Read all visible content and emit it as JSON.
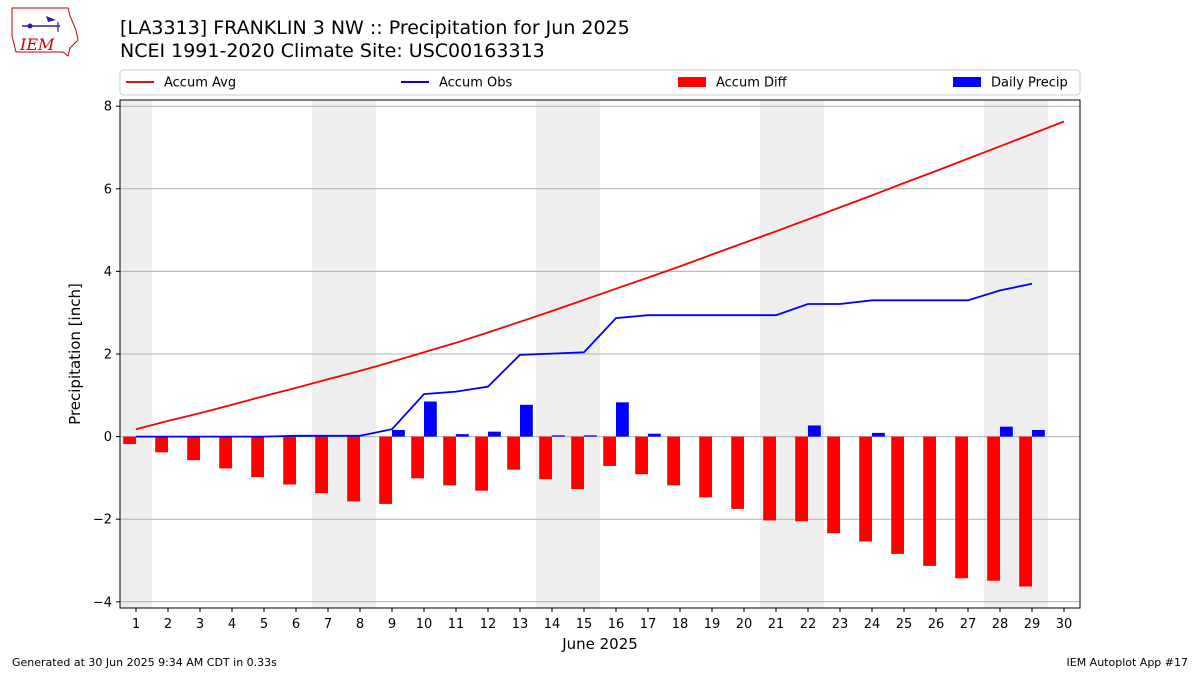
{
  "title_line1": "[LA3313] FRANKLIN 3 NW :: Precipitation for Jun 2025",
  "title_line2": "NCEI 1991-2020 Climate Site: USC00163313",
  "logo_text": "IEM",
  "footer_left": "Generated at 30 Jun 2025 9:34 AM CDT in 0.33s",
  "footer_right": "IEM Autoplot App #17",
  "colors": {
    "avg": "#ff0000",
    "obs": "#0000ff",
    "diff": "#ff0000",
    "daily": "#0000ff",
    "weekend": "#eeeeee",
    "grid": "#b0b0b0"
  },
  "chart_data": {
    "type": "bar",
    "xlabel": "June 2025",
    "ylabel": "Precipitation [inch]",
    "ylim": [
      -4.15,
      8.15
    ],
    "xlim": [
      0.5,
      30.5
    ],
    "yticks": [
      -4,
      -2,
      0,
      2,
      4,
      6,
      8
    ],
    "ytick_labels": [
      "−4",
      "−2",
      "0",
      "2",
      "4",
      "6",
      "8"
    ],
    "x": [
      1,
      2,
      3,
      4,
      5,
      6,
      7,
      8,
      9,
      10,
      11,
      12,
      13,
      14,
      15,
      16,
      17,
      18,
      19,
      20,
      21,
      22,
      23,
      24,
      25,
      26,
      27,
      28,
      29,
      30
    ],
    "x_tick_labels": [
      "1",
      "2",
      "3",
      "4",
      "5",
      "6",
      "7",
      "8",
      "9",
      "10",
      "11",
      "12",
      "13",
      "14",
      "15",
      "16",
      "17",
      "18",
      "19",
      "20",
      "21",
      "22",
      "23",
      "24",
      "25",
      "26",
      "27",
      "28",
      "29",
      "30"
    ],
    "grid": "horizontal",
    "legend_position": "top",
    "weekend_shading": [
      [
        0.5,
        1.5
      ],
      [
        6.5,
        8.5
      ],
      [
        13.5,
        15.5
      ],
      [
        20.5,
        22.5
      ],
      [
        27.5,
        29.5
      ]
    ],
    "series": [
      {
        "name": "Accum Avg",
        "kind": "line",
        "values": [
          0.18,
          0.38,
          0.57,
          0.77,
          0.98,
          1.18,
          1.39,
          1.59,
          1.81,
          2.04,
          2.27,
          2.52,
          2.78,
          3.04,
          3.31,
          3.58,
          3.85,
          4.12,
          4.41,
          4.69,
          4.97,
          5.26,
          5.55,
          5.84,
          6.14,
          6.43,
          6.73,
          7.03,
          7.33,
          7.63
        ]
      },
      {
        "name": "Accum Obs",
        "kind": "line",
        "values": [
          0.0,
          0.0,
          0.0,
          0.0,
          0.0,
          0.02,
          0.02,
          0.02,
          0.18,
          1.03,
          1.09,
          1.21,
          1.98,
          2.01,
          2.04,
          2.87,
          2.94,
          2.94,
          2.94,
          2.94,
          2.94,
          3.21,
          3.21,
          3.3,
          3.3,
          3.3,
          3.3,
          3.54,
          3.7,
          null
        ]
      },
      {
        "name": "Accum Diff",
        "kind": "bar",
        "values": [
          -0.18,
          -0.38,
          -0.57,
          -0.77,
          -0.98,
          -1.16,
          -1.37,
          -1.57,
          -1.63,
          -1.01,
          -1.18,
          -1.31,
          -0.8,
          -1.03,
          -1.27,
          -0.71,
          -0.91,
          -1.18,
          -1.47,
          -1.75,
          -2.03,
          -2.05,
          -2.34,
          -2.54,
          -2.84,
          -3.13,
          -3.43,
          -3.49,
          -3.63,
          null
        ]
      },
      {
        "name": "Daily Precip",
        "kind": "bar",
        "values": [
          0.0,
          0.0,
          0.0,
          0.0,
          0.0,
          0.02,
          0.0,
          0.0,
          0.16,
          0.85,
          0.06,
          0.12,
          0.77,
          0.03,
          0.03,
          0.83,
          0.07,
          0.0,
          0.0,
          0.0,
          0.0,
          0.27,
          0.0,
          0.09,
          0.0,
          0.0,
          0.0,
          0.24,
          0.16,
          null
        ]
      }
    ]
  }
}
